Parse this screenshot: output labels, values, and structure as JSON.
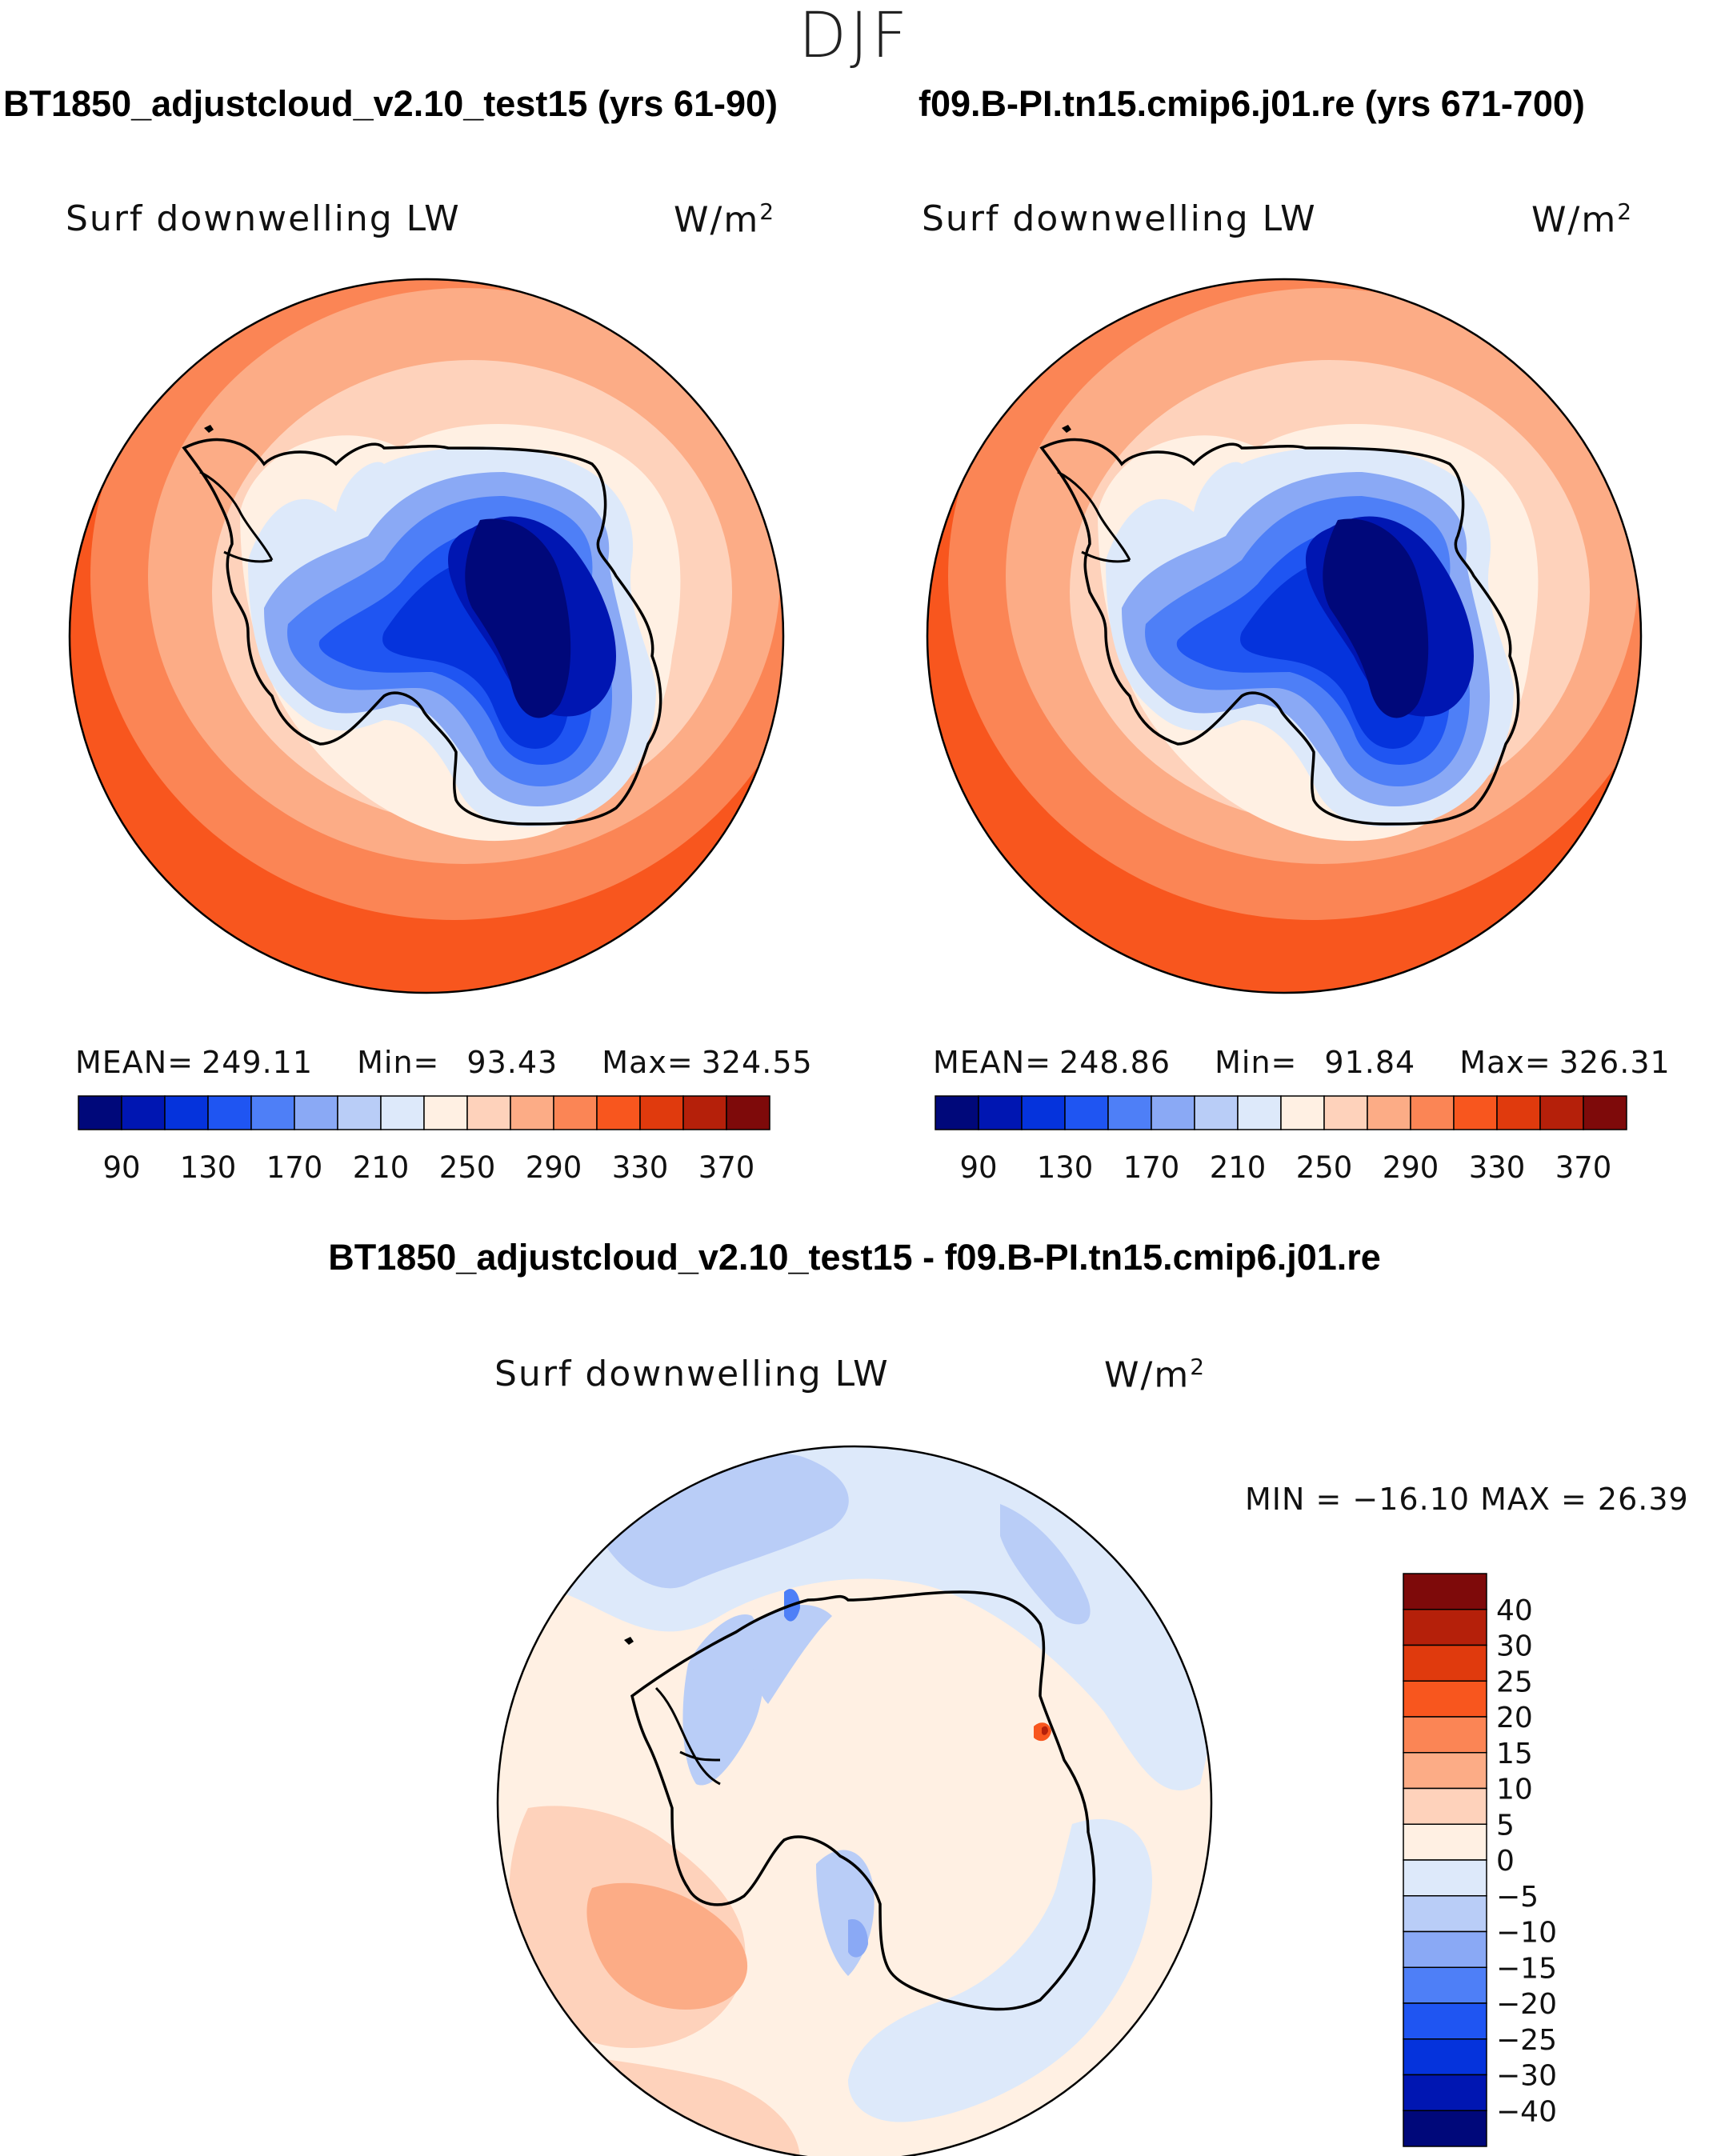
{
  "header": {
    "season": "DJF"
  },
  "panels": {
    "left": {
      "case": "BT1850_adjustcloud_v2.10_test15 (yrs 61-90)",
      "variable": "Surf downwelling LW",
      "units_base": "W/m",
      "units_exp": "2",
      "mean_label": "MEAN=",
      "mean": "249.11",
      "min_label": "Min=",
      "min": "93.43",
      "max_label": "Max=",
      "max": "324.55"
    },
    "right": {
      "case": "f09.B-PI.tn15.cmip6.j01.re (yrs 671-700)",
      "variable": "Surf downwelling LW",
      "units_base": "W/m",
      "units_exp": "2",
      "mean_label": "MEAN=",
      "mean": "248.86",
      "min_label": "Min=",
      "min": "91.84",
      "max_label": "Max=",
      "max": "326.31"
    },
    "diff": {
      "title": "BT1850_adjustcloud_v2.10_test15 - f09.B-PI.tn15.cmip6.j01.re",
      "variable": "Surf downwelling LW",
      "units_base": "W/m",
      "units_exp": "2",
      "minmax": "MIN = −16.10 MAX =   26.39"
    }
  },
  "chart_data": [
    {
      "type": "heatmap",
      "projection": "south-polar stereographic",
      "title": "BT1850_adjustcloud_v2.10_test15 (yrs 61-90)",
      "variable": "Surf downwelling LW",
      "units": "W/m2",
      "stats": {
        "mean": 249.11,
        "min": 93.43,
        "max": 324.55
      },
      "colorbar": {
        "orientation": "horizontal",
        "levels": [
          90,
          110,
          130,
          150,
          170,
          190,
          210,
          230,
          250,
          270,
          290,
          310,
          330,
          350,
          370
        ],
        "tick_labels": [
          "90",
          "130",
          "170",
          "210",
          "250",
          "290",
          "330",
          "370"
        ],
        "colors": [
          "#00087a",
          "#0016b2",
          "#0533dc",
          "#1f55f2",
          "#4e7ff7",
          "#8aa9f5",
          "#b9cdf7",
          "#dde9fa",
          "#fff0e3",
          "#fed2bb",
          "#fcac86",
          "#fb8555",
          "#f8561e",
          "#e03a0d",
          "#b5200a",
          "#7e0a0a"
        ]
      }
    },
    {
      "type": "heatmap",
      "projection": "south-polar stereographic",
      "title": "f09.B-PI.tn15.cmip6.j01.re (yrs 671-700)",
      "variable": "Surf downwelling LW",
      "units": "W/m2",
      "stats": {
        "mean": 248.86,
        "min": 91.84,
        "max": 326.31
      },
      "colorbar": {
        "orientation": "horizontal",
        "levels": [
          90,
          110,
          130,
          150,
          170,
          190,
          210,
          230,
          250,
          270,
          290,
          310,
          330,
          350,
          370
        ],
        "tick_labels": [
          "90",
          "130",
          "170",
          "210",
          "250",
          "290",
          "330",
          "370"
        ],
        "colors": [
          "#00087a",
          "#0016b2",
          "#0533dc",
          "#1f55f2",
          "#4e7ff7",
          "#8aa9f5",
          "#b9cdf7",
          "#dde9fa",
          "#fff0e3",
          "#fed2bb",
          "#fcac86",
          "#fb8555",
          "#f8561e",
          "#e03a0d",
          "#b5200a",
          "#7e0a0a"
        ]
      }
    },
    {
      "type": "heatmap",
      "projection": "south-polar stereographic",
      "title": "BT1850_adjustcloud_v2.10_test15 - f09.B-PI.tn15.cmip6.j01.re",
      "variable": "Surf downwelling LW",
      "units": "W/m2",
      "stats": {
        "min": -16.1,
        "max": 26.39
      },
      "colorbar": {
        "orientation": "vertical",
        "levels": [
          40,
          30,
          25,
          20,
          15,
          10,
          5,
          0,
          -5,
          -10,
          -15,
          -20,
          -25,
          -30,
          -40
        ],
        "tick_labels": [
          "40",
          "30",
          "25",
          "20",
          "15",
          "10",
          "5",
          "0",
          "−5",
          "−10",
          "−15",
          "−20",
          "−25",
          "−30",
          "−40"
        ],
        "colors": [
          "#7e0a0a",
          "#b5200a",
          "#e03a0d",
          "#f8561e",
          "#fb8555",
          "#fcac86",
          "#fed2bb",
          "#fff0e3",
          "#dde9fa",
          "#b9cdf7",
          "#8aa9f5",
          "#4e7ff7",
          "#1f55f2",
          "#0533dc",
          "#0016b2",
          "#00087a"
        ]
      }
    }
  ]
}
